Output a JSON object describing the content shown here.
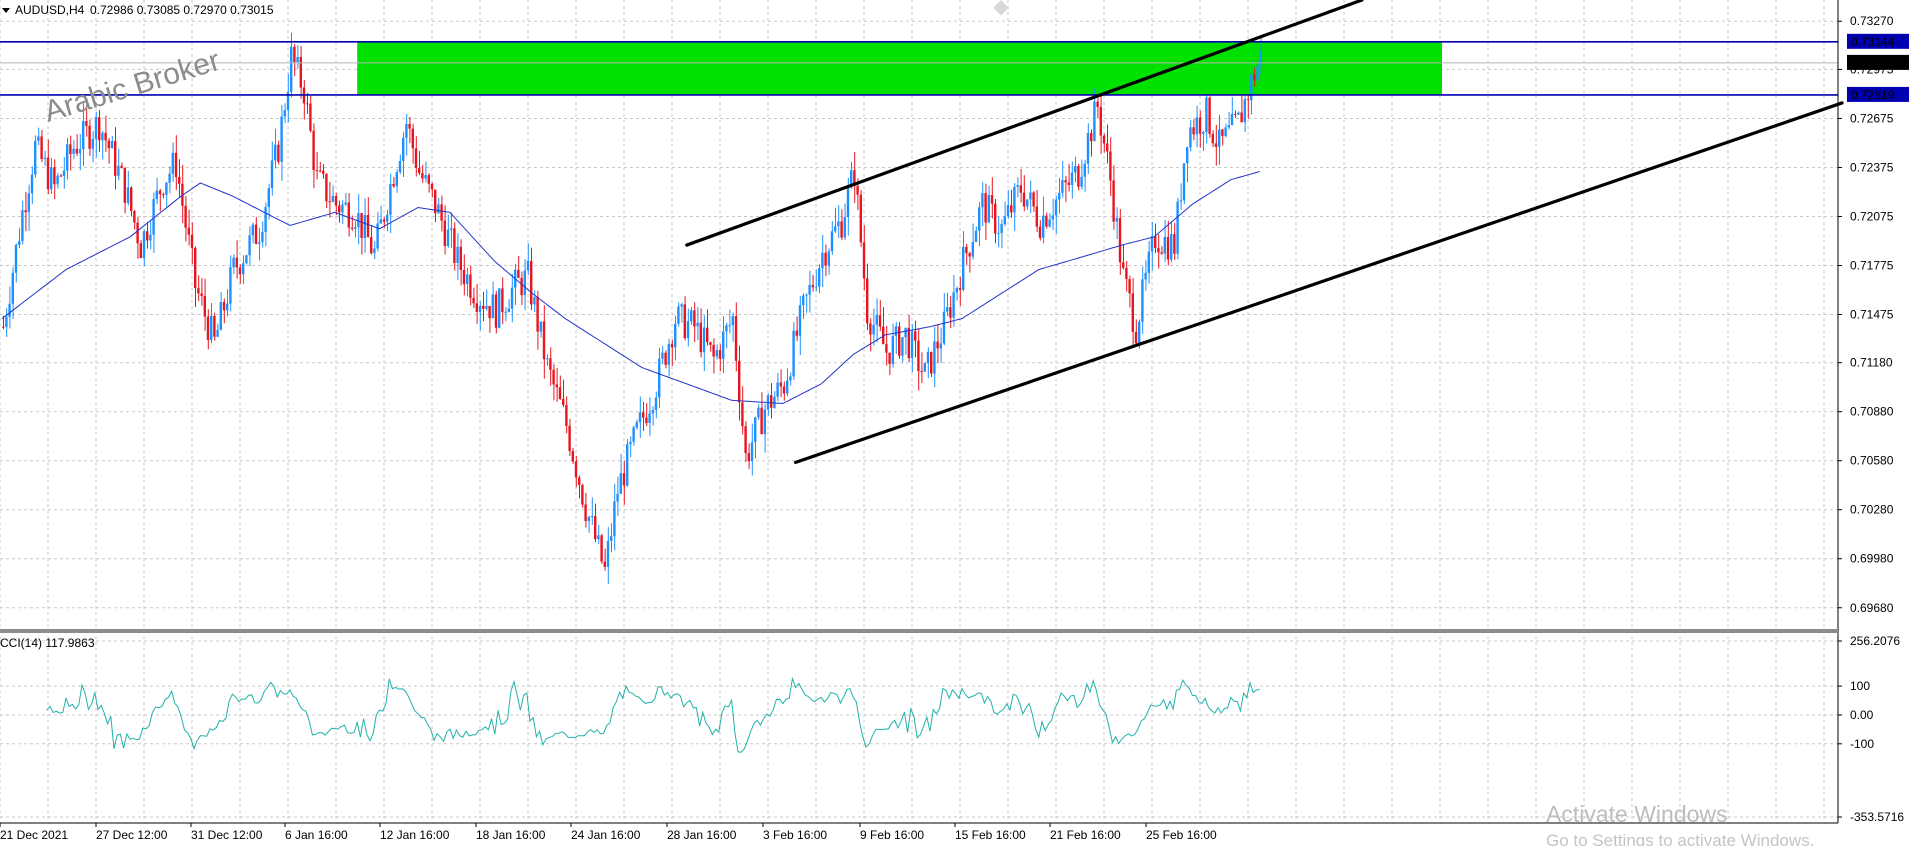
{
  "header": {
    "symbol_timeframe": "AUDUSD,H4",
    "ohlc": "0.72986 0.73085 0.72970 0.73015"
  },
  "watermark": "Arabic Broker",
  "windows_notice": {
    "title": "Activate Windows",
    "subtitle": "Go to Settings to activate Windows."
  },
  "colors": {
    "bull": "#1e90ff",
    "bear": "#e8141e",
    "ma": "#2233c8",
    "cci": "#20b2aa",
    "zone": "#00e100",
    "level": "#0000b0",
    "trend": "#000000",
    "grid": "#c8c8c8"
  },
  "chart_data": [
    {
      "type": "candlestick",
      "title": "AUDUSD,H4",
      "price_range": [
        0.6955,
        0.734
      ],
      "y_ticks": [
        "0.73270",
        "0.72975",
        "0.72675",
        "0.72375",
        "0.72075",
        "0.71775",
        "0.71475",
        "0.71180",
        "0.70880",
        "0.70580",
        "0.70280",
        "0.69980",
        "0.69680"
      ],
      "x_ticks": [
        "21 Dec 2021",
        "27 Dec 12:00",
        "31 Dec 12:00",
        "6 Jan 16:00",
        "12 Jan 16:00",
        "18 Jan 16:00",
        "24 Jan 16:00",
        "28 Jan 16:00",
        "3 Feb 16:00",
        "9 Feb 16:00",
        "15 Feb 16:00",
        "21 Feb 16:00",
        "25 Feb 16:00"
      ],
      "current_price": "0.73015",
      "grid": true,
      "price_path": [
        [
          0,
          0.714
        ],
        [
          6,
          0.721
        ],
        [
          10,
          0.725
        ],
        [
          16,
          0.7225
        ],
        [
          22,
          0.725
        ],
        [
          30,
          0.7265
        ],
        [
          38,
          0.7225
        ],
        [
          43,
          0.719
        ],
        [
          50,
          0.723
        ],
        [
          54,
          0.724
        ],
        [
          60,
          0.7165
        ],
        [
          66,
          0.713
        ],
        [
          72,
          0.7175
        ],
        [
          80,
          0.72
        ],
        [
          86,
          0.725
        ],
        [
          90,
          0.7305
        ],
        [
          94,
          0.7285
        ],
        [
          98,
          0.723
        ],
        [
          104,
          0.7215
        ],
        [
          110,
          0.721
        ],
        [
          116,
          0.7185
        ],
        [
          122,
          0.7235
        ],
        [
          126,
          0.7265
        ],
        [
          130,
          0.7235
        ],
        [
          136,
          0.721
        ],
        [
          142,
          0.718
        ],
        [
          148,
          0.716
        ],
        [
          154,
          0.715
        ],
        [
          160,
          0.7165
        ],
        [
          164,
          0.717
        ],
        [
          170,
          0.7115
        ],
        [
          176,
          0.708
        ],
        [
          182,
          0.703
        ],
        [
          188,
          0.699
        ],
        [
          192,
          0.704
        ],
        [
          198,
          0.7075
        ],
        [
          204,
          0.7105
        ],
        [
          210,
          0.7145
        ],
        [
          216,
          0.714
        ],
        [
          222,
          0.712
        ],
        [
          228,
          0.7145
        ],
        [
          232,
          0.706
        ],
        [
          238,
          0.709
        ],
        [
          244,
          0.7105
        ],
        [
          250,
          0.715
        ],
        [
          256,
          0.7185
        ],
        [
          262,
          0.7205
        ],
        [
          266,
          0.7235
        ],
        [
          270,
          0.715
        ],
        [
          276,
          0.7125
        ],
        [
          282,
          0.7135
        ],
        [
          288,
          0.711
        ],
        [
          294,
          0.714
        ],
        [
          300,
          0.718
        ],
        [
          306,
          0.7215
        ],
        [
          312,
          0.72
        ],
        [
          318,
          0.7225
        ],
        [
          324,
          0.7205
        ],
        [
          330,
          0.722
        ],
        [
          336,
          0.7235
        ],
        [
          342,
          0.7275
        ],
        [
          346,
          0.723
        ],
        [
          350,
          0.717
        ],
        [
          354,
          0.714
        ],
        [
          360,
          0.7195
        ],
        [
          366,
          0.719
        ],
        [
          370,
          0.726
        ],
        [
          376,
          0.727
        ],
        [
          380,
          0.725
        ],
        [
          386,
          0.7265
        ],
        [
          390,
          0.729
        ],
        [
          393,
          0.7305
        ]
      ],
      "moving_average": [
        [
          0,
          0.7145
        ],
        [
          20,
          0.7175
        ],
        [
          40,
          0.7195
        ],
        [
          56,
          0.722
        ],
        [
          62,
          0.7228
        ],
        [
          72,
          0.722
        ],
        [
          90,
          0.7202
        ],
        [
          104,
          0.721
        ],
        [
          118,
          0.72
        ],
        [
          130,
          0.7213
        ],
        [
          140,
          0.721
        ],
        [
          154,
          0.718
        ],
        [
          166,
          0.716
        ],
        [
          176,
          0.7145
        ],
        [
          188,
          0.713
        ],
        [
          200,
          0.7115
        ],
        [
          214,
          0.7105
        ],
        [
          228,
          0.7095
        ],
        [
          244,
          0.7093
        ],
        [
          256,
          0.7105
        ],
        [
          266,
          0.7123
        ],
        [
          276,
          0.7135
        ],
        [
          290,
          0.714
        ],
        [
          300,
          0.7145
        ],
        [
          312,
          0.716
        ],
        [
          324,
          0.7175
        ],
        [
          338,
          0.7183
        ],
        [
          350,
          0.719
        ],
        [
          360,
          0.7195
        ],
        [
          372,
          0.7215
        ],
        [
          384,
          0.723
        ],
        [
          393,
          0.7235
        ]
      ],
      "supply_zone": {
        "from": 0.72819,
        "to": 0.73144,
        "start_bar": 111,
        "end_bar": 450
      },
      "horizontal_levels": [
        {
          "price": "0.73144"
        },
        {
          "price": "0.72819"
        }
      ],
      "grey_level": "0.73015",
      "channel_lines": [
        {
          "from": [
            214,
            0.719
          ],
          "to": [
            425,
            0.734
          ]
        },
        {
          "from": [
            248,
            0.7057
          ],
          "to": [
            575,
            0.7277
          ]
        }
      ]
    },
    {
      "type": "line",
      "title": "CCI(14) 117.9863",
      "y_ticks": [
        "256.2076",
        "100",
        "0.00",
        "-100",
        "-353.5716"
      ],
      "y_range": [
        -353.5716,
        256.2076
      ],
      "level_lines": [
        100,
        0,
        -100
      ],
      "grid": true
    }
  ]
}
